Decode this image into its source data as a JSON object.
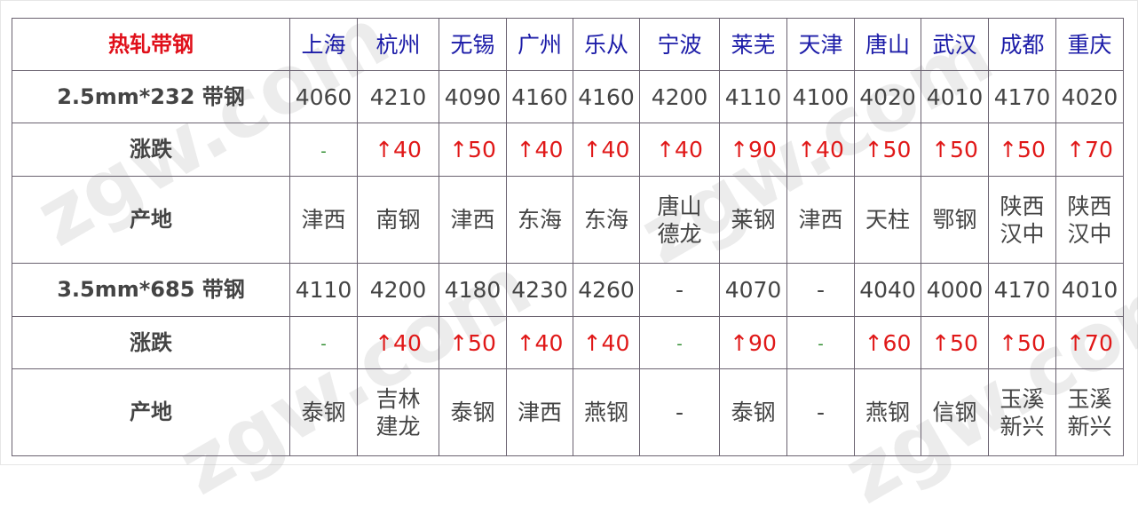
{
  "table": {
    "title": "热轧带钢",
    "cities": [
      "上海",
      "杭州",
      "无锡",
      "广州",
      "乐从",
      "宁波",
      "莱芜",
      "天津",
      "唐山",
      "武汉",
      "成都",
      "重庆"
    ],
    "rows": [
      {
        "label": "2.5mm*232 带钢",
        "type": "price",
        "values": [
          "4060",
          "4210",
          "4090",
          "4160",
          "4160",
          "4200",
          "4110",
          "4100",
          "4020",
          "4010",
          "4170",
          "4020"
        ]
      },
      {
        "label": "涨跌",
        "type": "change",
        "values": [
          "-",
          "↑40",
          "↑50",
          "↑40",
          "↑40",
          "↑40",
          "↑90",
          "↑40",
          "↑50",
          "↑50",
          "↑50",
          "↑70"
        ]
      },
      {
        "label": "产地",
        "type": "origin",
        "values": [
          "津西",
          "南钢",
          "津西",
          "东海",
          "东海",
          "唐山\n德龙",
          "莱钢",
          "津西",
          "天柱",
          "鄂钢",
          "陕西\n汉中",
          "陕西\n汉中"
        ]
      },
      {
        "label": "3.5mm*685 带钢",
        "type": "price",
        "values": [
          "4110",
          "4200",
          "4180",
          "4230",
          "4260",
          "-",
          "4070",
          "-",
          "4040",
          "4000",
          "4170",
          "4010"
        ]
      },
      {
        "label": "涨跌",
        "type": "change",
        "values": [
          "-",
          "↑40",
          "↑50",
          "↑40",
          "↑40",
          "-",
          "↑90",
          "-",
          "↑60",
          "↑50",
          "↑50",
          "↑70"
        ]
      },
      {
        "label": "产地",
        "type": "origin",
        "values": [
          "泰钢",
          "吉林\n建龙",
          "泰钢",
          "津西",
          "燕钢",
          "-",
          "泰钢",
          "-",
          "燕钢",
          "信钢",
          "玉溪\n新兴",
          "玉溪\n新兴"
        ]
      }
    ]
  },
  "colors": {
    "title": "#e0101a",
    "city": "#1c1ca8",
    "up": "#e01818",
    "flat": "#2a8a2a",
    "text": "#444444"
  }
}
